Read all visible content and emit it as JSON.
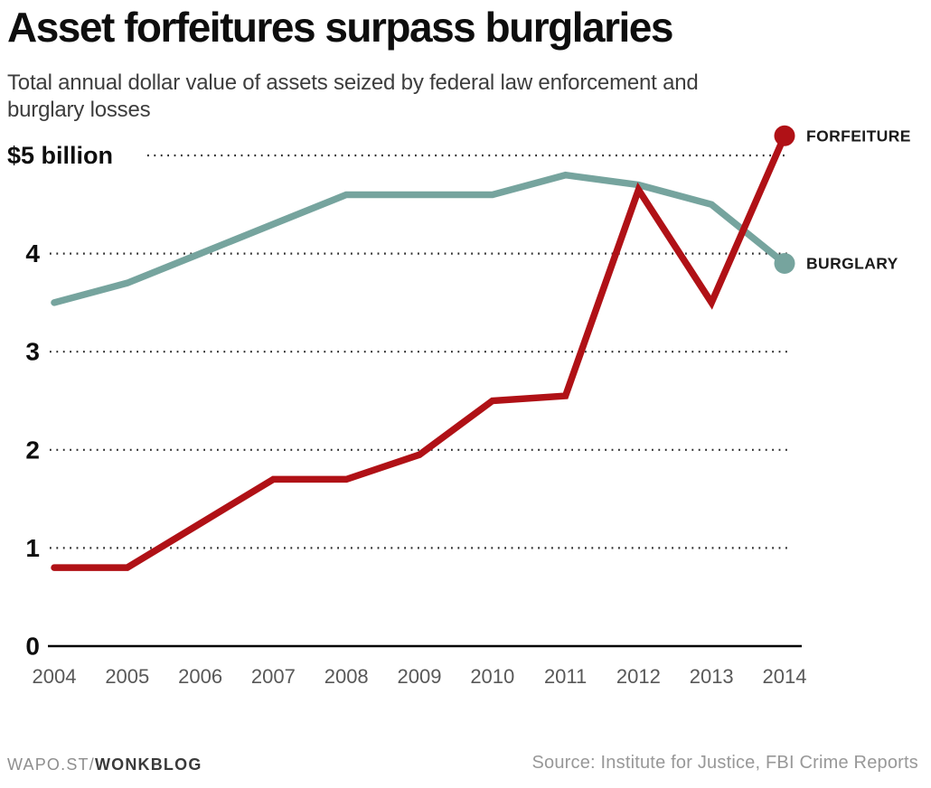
{
  "header": {
    "title": "Asset forfeitures surpass burglaries",
    "subtitle_line1": "Total annual dollar value of assets seized by federal law enforcement and",
    "subtitle_line2": "burglary losses"
  },
  "footer": {
    "brand_prefix": "WAPO.ST/",
    "brand_bold": "WONKBLOG",
    "source": "Source: Institute for Justice, FBI Crime Reports"
  },
  "colors": {
    "forfeiture": "#b01116",
    "burglary": "#76a49e",
    "axis": "#000000",
    "gridline": "#2b2b2b",
    "ytick_label": "#0e0e0e",
    "xtick_label": "#585858",
    "legend_label": "#1a1a1a"
  },
  "chart_data": {
    "type": "line",
    "title": "Asset forfeitures surpass burglaries",
    "subtitle": "Total annual dollar value of assets seized by federal law enforcement and burglary losses",
    "unit": "billions of dollars",
    "x": [
      2004,
      2005,
      2006,
      2007,
      2008,
      2009,
      2010,
      2011,
      2012,
      2013,
      2014
    ],
    "series": [
      {
        "name": "BURGLARY",
        "color": "#76a49e",
        "values": [
          3.5,
          3.7,
          4.0,
          4.3,
          4.6,
          4.6,
          4.6,
          4.8,
          4.7,
          4.5,
          3.9
        ]
      },
      {
        "name": "FORFEITURE",
        "color": "#b01116",
        "values": [
          0.8,
          0.8,
          1.25,
          1.7,
          1.7,
          1.95,
          2.5,
          2.55,
          4.65,
          3.5,
          5.2
        ]
      }
    ],
    "ylim": [
      0,
      5.5
    ],
    "yticks": [
      {
        "value": 5,
        "label": "$5 billion"
      },
      {
        "value": 4,
        "label": "4"
      },
      {
        "value": 3,
        "label": "3"
      },
      {
        "value": 2,
        "label": "2"
      },
      {
        "value": 1,
        "label": "1"
      },
      {
        "value": 0,
        "label": "0"
      }
    ],
    "grid": "horizontal dotted",
    "legend_position": "line-end labels with dots"
  }
}
